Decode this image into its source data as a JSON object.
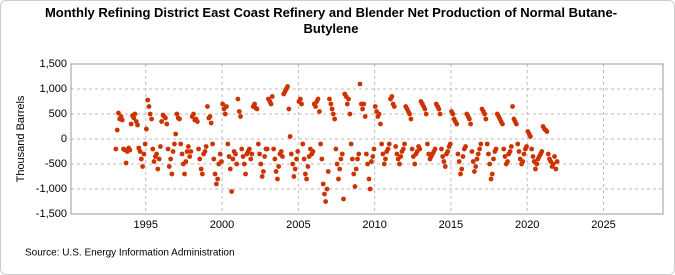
{
  "chart_data": {
    "type": "scatter",
    "title": "Monthly Refining District East Coast Refinery and Blender Net Production of Normal Butane-Butylene",
    "y_label": "Thousand Barrels",
    "source": "Source: U.S. Energy Information Administration",
    "color": "#cc3300",
    "grid": true,
    "xlim": [
      1990.1,
      2028.9
    ],
    "ylim": [
      -1500,
      1500
    ],
    "xticks": [
      1995,
      2000,
      2005,
      2010,
      2015,
      2020,
      2025
    ],
    "yticks": [
      {
        "value": -1500,
        "label": "-1,500"
      },
      {
        "value": -1000,
        "label": "-1,000"
      },
      -500,
      0,
      500,
      {
        "value": 1000,
        "label": "1,000"
      },
      {
        "value": 1500,
        "label": "1,500"
      }
    ],
    "x": [
      1993.04,
      1993.13,
      1993.21,
      1993.29,
      1993.38,
      1993.46,
      1993.54,
      1993.63,
      1993.71,
      1993.79,
      1993.88,
      1993.96,
      1994.04,
      1994.13,
      1994.21,
      1994.29,
      1994.38,
      1994.46,
      1994.54,
      1994.63,
      1994.71,
      1994.79,
      1994.88,
      1994.96,
      1995.04,
      1995.13,
      1995.21,
      1995.29,
      1995.38,
      1995.46,
      1995.54,
      1995.63,
      1995.71,
      1995.79,
      1995.88,
      1995.96,
      1996.04,
      1996.13,
      1996.21,
      1996.29,
      1996.38,
      1996.46,
      1996.54,
      1996.63,
      1996.71,
      1996.79,
      1996.88,
      1996.96,
      1997.04,
      1997.13,
      1997.21,
      1997.29,
      1997.38,
      1997.46,
      1997.54,
      1997.63,
      1997.71,
      1997.79,
      1997.88,
      1997.96,
      1998.04,
      1998.13,
      1998.21,
      1998.29,
      1998.38,
      1998.46,
      1998.54,
      1998.63,
      1998.71,
      1998.79,
      1998.88,
      1998.96,
      1999.04,
      1999.13,
      1999.21,
      1999.29,
      1999.38,
      1999.46,
      1999.54,
      1999.63,
      1999.71,
      1999.79,
      1999.88,
      1999.96,
      2000.04,
      2000.13,
      2000.21,
      2000.29,
      2000.38,
      2000.46,
      2000.54,
      2000.63,
      2000.71,
      2000.79,
      2000.88,
      2000.96,
      2001.04,
      2001.13,
      2001.21,
      2001.29,
      2001.38,
      2001.46,
      2001.54,
      2001.63,
      2001.71,
      2001.79,
      2001.88,
      2001.96,
      2002.04,
      2002.13,
      2002.21,
      2002.29,
      2002.38,
      2002.46,
      2002.54,
      2002.63,
      2002.71,
      2002.79,
      2002.88,
      2002.96,
      2003.04,
      2003.13,
      2003.21,
      2003.29,
      2003.38,
      2003.46,
      2003.54,
      2003.63,
      2003.71,
      2003.79,
      2003.88,
      2003.96,
      2004.04,
      2004.13,
      2004.21,
      2004.29,
      2004.38,
      2004.46,
      2004.54,
      2004.63,
      2004.71,
      2004.79,
      2004.88,
      2004.96,
      2005.04,
      2005.13,
      2005.21,
      2005.29,
      2005.38,
      2005.46,
      2005.54,
      2005.63,
      2005.71,
      2005.79,
      2005.88,
      2005.96,
      2006.04,
      2006.13,
      2006.21,
      2006.29,
      2006.38,
      2006.46,
      2006.54,
      2006.63,
      2006.71,
      2006.79,
      2006.88,
      2006.96,
      2007.04,
      2007.13,
      2007.21,
      2007.29,
      2007.38,
      2007.46,
      2007.54,
      2007.63,
      2007.71,
      2007.79,
      2007.88,
      2007.96,
      2008.04,
      2008.13,
      2008.21,
      2008.29,
      2008.38,
      2008.46,
      2008.54,
      2008.63,
      2008.71,
      2008.79,
      2008.88,
      2008.96,
      2009.04,
      2009.13,
      2009.21,
      2009.29,
      2009.38,
      2009.46,
      2009.54,
      2009.63,
      2009.71,
      2009.79,
      2009.88,
      2009.96,
      2010.04,
      2010.13,
      2010.21,
      2010.29,
      2010.38,
      2010.46,
      2010.54,
      2010.63,
      2010.71,
      2010.79,
      2010.88,
      2010.96,
      2011.04,
      2011.13,
      2011.21,
      2011.29,
      2011.38,
      2011.46,
      2011.54,
      2011.63,
      2011.71,
      2011.79,
      2011.88,
      2011.96,
      2012.04,
      2012.13,
      2012.21,
      2012.29,
      2012.38,
      2012.46,
      2012.54,
      2012.63,
      2012.71,
      2012.79,
      2012.88,
      2012.96,
      2013.04,
      2013.13,
      2013.21,
      2013.29,
      2013.38,
      2013.46,
      2013.54,
      2013.63,
      2013.71,
      2013.79,
      2013.88,
      2013.96,
      2014.04,
      2014.13,
      2014.21,
      2014.29,
      2014.38,
      2014.46,
      2014.54,
      2014.63,
      2014.71,
      2014.79,
      2014.88,
      2014.96,
      2015.04,
      2015.13,
      2015.21,
      2015.29,
      2015.38,
      2015.46,
      2015.54,
      2015.63,
      2015.71,
      2015.79,
      2015.88,
      2015.96,
      2016.04,
      2016.13,
      2016.21,
      2016.29,
      2016.38,
      2016.46,
      2016.54,
      2016.63,
      2016.71,
      2016.79,
      2016.88,
      2016.96,
      2017.04,
      2017.13,
      2017.21,
      2017.29,
      2017.38,
      2017.46,
      2017.54,
      2017.63,
      2017.71,
      2017.79,
      2017.88,
      2017.96,
      2018.04,
      2018.13,
      2018.21,
      2018.29,
      2018.38,
      2018.46,
      2018.54,
      2018.63,
      2018.71,
      2018.79,
      2018.88,
      2018.96,
      2019.04,
      2019.13,
      2019.21,
      2019.29,
      2019.38,
      2019.46,
      2019.54,
      2019.63,
      2019.71,
      2019.79,
      2019.88,
      2019.96,
      2020.04,
      2020.13,
      2020.21,
      2020.29,
      2020.38,
      2020.46,
      2020.54,
      2020.63,
      2020.71,
      2020.79,
      2020.88,
      2020.96,
      2021.04,
      2021.13,
      2021.21,
      2021.29,
      2021.38,
      2021.46,
      2021.54,
      2021.63,
      2021.71,
      2021.79,
      2021.88,
      2021.96
    ],
    "values": [
      -200,
      180,
      520,
      400,
      450,
      380,
      -200,
      -220,
      -480,
      -250,
      -180,
      -220,
      300,
      470,
      420,
      500,
      350,
      280,
      -180,
      -250,
      -400,
      -550,
      -300,
      -100,
      200,
      780,
      650,
      500,
      400,
      -200,
      -450,
      -350,
      -300,
      -600,
      -400,
      -150,
      350,
      480,
      450,
      420,
      300,
      -200,
      -550,
      -400,
      -700,
      -250,
      -100,
      100,
      500,
      420,
      400,
      -100,
      -300,
      -500,
      -700,
      -450,
      -250,
      -150,
      -350,
      -250,
      450,
      500,
      380,
      400,
      350,
      -200,
      -400,
      -600,
      -700,
      -300,
      -250,
      -150,
      650,
      420,
      450,
      320,
      -100,
      -400,
      -700,
      -900,
      -800,
      -500,
      -300,
      -450,
      700,
      600,
      500,
      650,
      -100,
      -350,
      -600,
      -1050,
      -400,
      -250,
      -300,
      -500,
      800,
      550,
      450,
      -200,
      -350,
      -500,
      -700,
      -300,
      -250,
      -200,
      -400,
      -300,
      650,
      700,
      620,
      600,
      -100,
      -300,
      -500,
      -750,
      -650,
      -350,
      -200,
      -200,
      800,
      750,
      700,
      850,
      -200,
      -400,
      -650,
      -800,
      -550,
      -300,
      -250,
      -350,
      900,
      950,
      1000,
      1050,
      600,
      50,
      -300,
      -500,
      -750,
      -600,
      -400,
      -250,
      750,
      800,
      700,
      -100,
      -400,
      -700,
      -800,
      -550,
      -350,
      -200,
      -300,
      -250,
      700,
      650,
      750,
      800,
      550,
      -100,
      -400,
      -900,
      -1100,
      -1250,
      -1000,
      -650,
      800,
      700,
      600,
      500,
      400,
      -200,
      -500,
      -800,
      -600,
      -400,
      -300,
      -1200,
      900,
      850,
      700,
      800,
      500,
      -100,
      -400,
      -700,
      -950,
      -600,
      -400,
      -300,
      1100,
      700,
      600,
      700,
      450,
      -300,
      -500,
      -800,
      -1000,
      -450,
      -350,
      -200,
      650,
      550,
      450,
      500,
      300,
      -100,
      -300,
      -500,
      -400,
      -250,
      -200,
      -100,
      800,
      850,
      700,
      650,
      -150,
      -300,
      -400,
      -500,
      -350,
      -250,
      -200,
      -100,
      650,
      600,
      550,
      500,
      400,
      -200,
      -350,
      -500,
      -300,
      -250,
      -150,
      -200,
      750,
      700,
      650,
      600,
      500,
      -100,
      -300,
      -400,
      -350,
      -300,
      -250,
      -200,
      700,
      650,
      600,
      500,
      -200,
      -350,
      -450,
      -550,
      -300,
      -250,
      -150,
      -100,
      550,
      500,
      400,
      350,
      300,
      -300,
      -450,
      -700,
      -600,
      -350,
      -200,
      -150,
      500,
      450,
      400,
      300,
      -250,
      -450,
      -650,
      -550,
      -400,
      -300,
      -200,
      -100,
      600,
      550,
      500,
      400,
      -100,
      -300,
      -500,
      -800,
      -700,
      -400,
      -250,
      -200,
      500,
      450,
      400,
      350,
      300,
      -200,
      -350,
      -500,
      -450,
      -300,
      -250,
      -150,
      650,
      400,
      350,
      300,
      -100,
      -250,
      -400,
      -500,
      -450,
      -300,
      -200,
      -150,
      150,
      100,
      50,
      -200,
      -350,
      -450,
      -600,
      -500,
      -400,
      -350,
      -300,
      -250,
      250,
      200,
      180,
      150,
      -300,
      -400,
      -450,
      -550,
      -500,
      -350,
      -600,
      -450
    ]
  }
}
